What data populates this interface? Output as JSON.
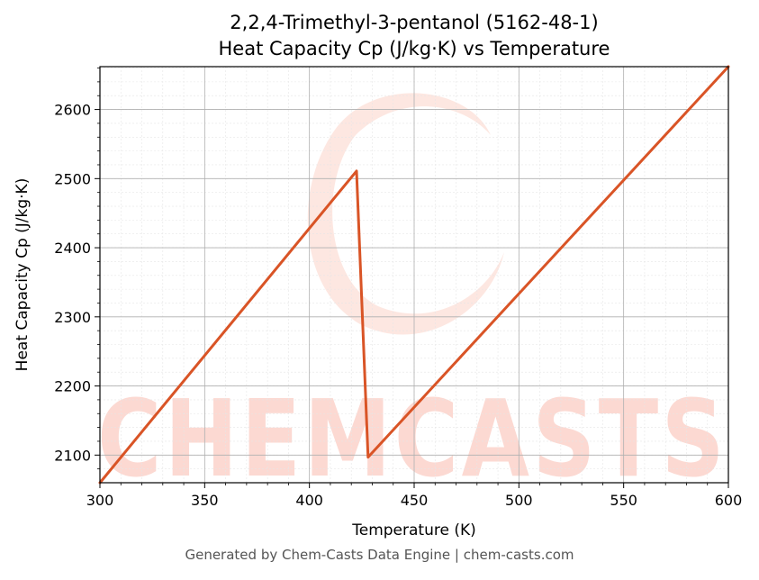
{
  "chart_data": {
    "type": "line",
    "title": "2,2,4-Trimethyl-3-pentanol (5162-48-1)",
    "subtitle": "Heat Capacity Cp (J/kg·K) vs Temperature",
    "xlabel": "Temperature (K)",
    "ylabel": "Heat Capacity Cp (J/kg·K)",
    "xlim": [
      300,
      600
    ],
    "ylim": [
      2060,
      2662
    ],
    "xticks": [
      300,
      350,
      400,
      450,
      500,
      550,
      600
    ],
    "yticks": [
      2100,
      2200,
      2300,
      2400,
      2500,
      2600
    ],
    "grid": true,
    "series": [
      {
        "color": "#d95426",
        "points": [
          [
            300,
            2060
          ],
          [
            422.5,
            2511
          ],
          [
            428,
            2097
          ],
          [
            600,
            2662
          ]
        ]
      }
    ]
  },
  "watermark": {
    "text": "CHEMCASTS",
    "color": "#fcd9d2"
  },
  "footer": "Generated by Chem-Casts Data Engine | chem-casts.com"
}
